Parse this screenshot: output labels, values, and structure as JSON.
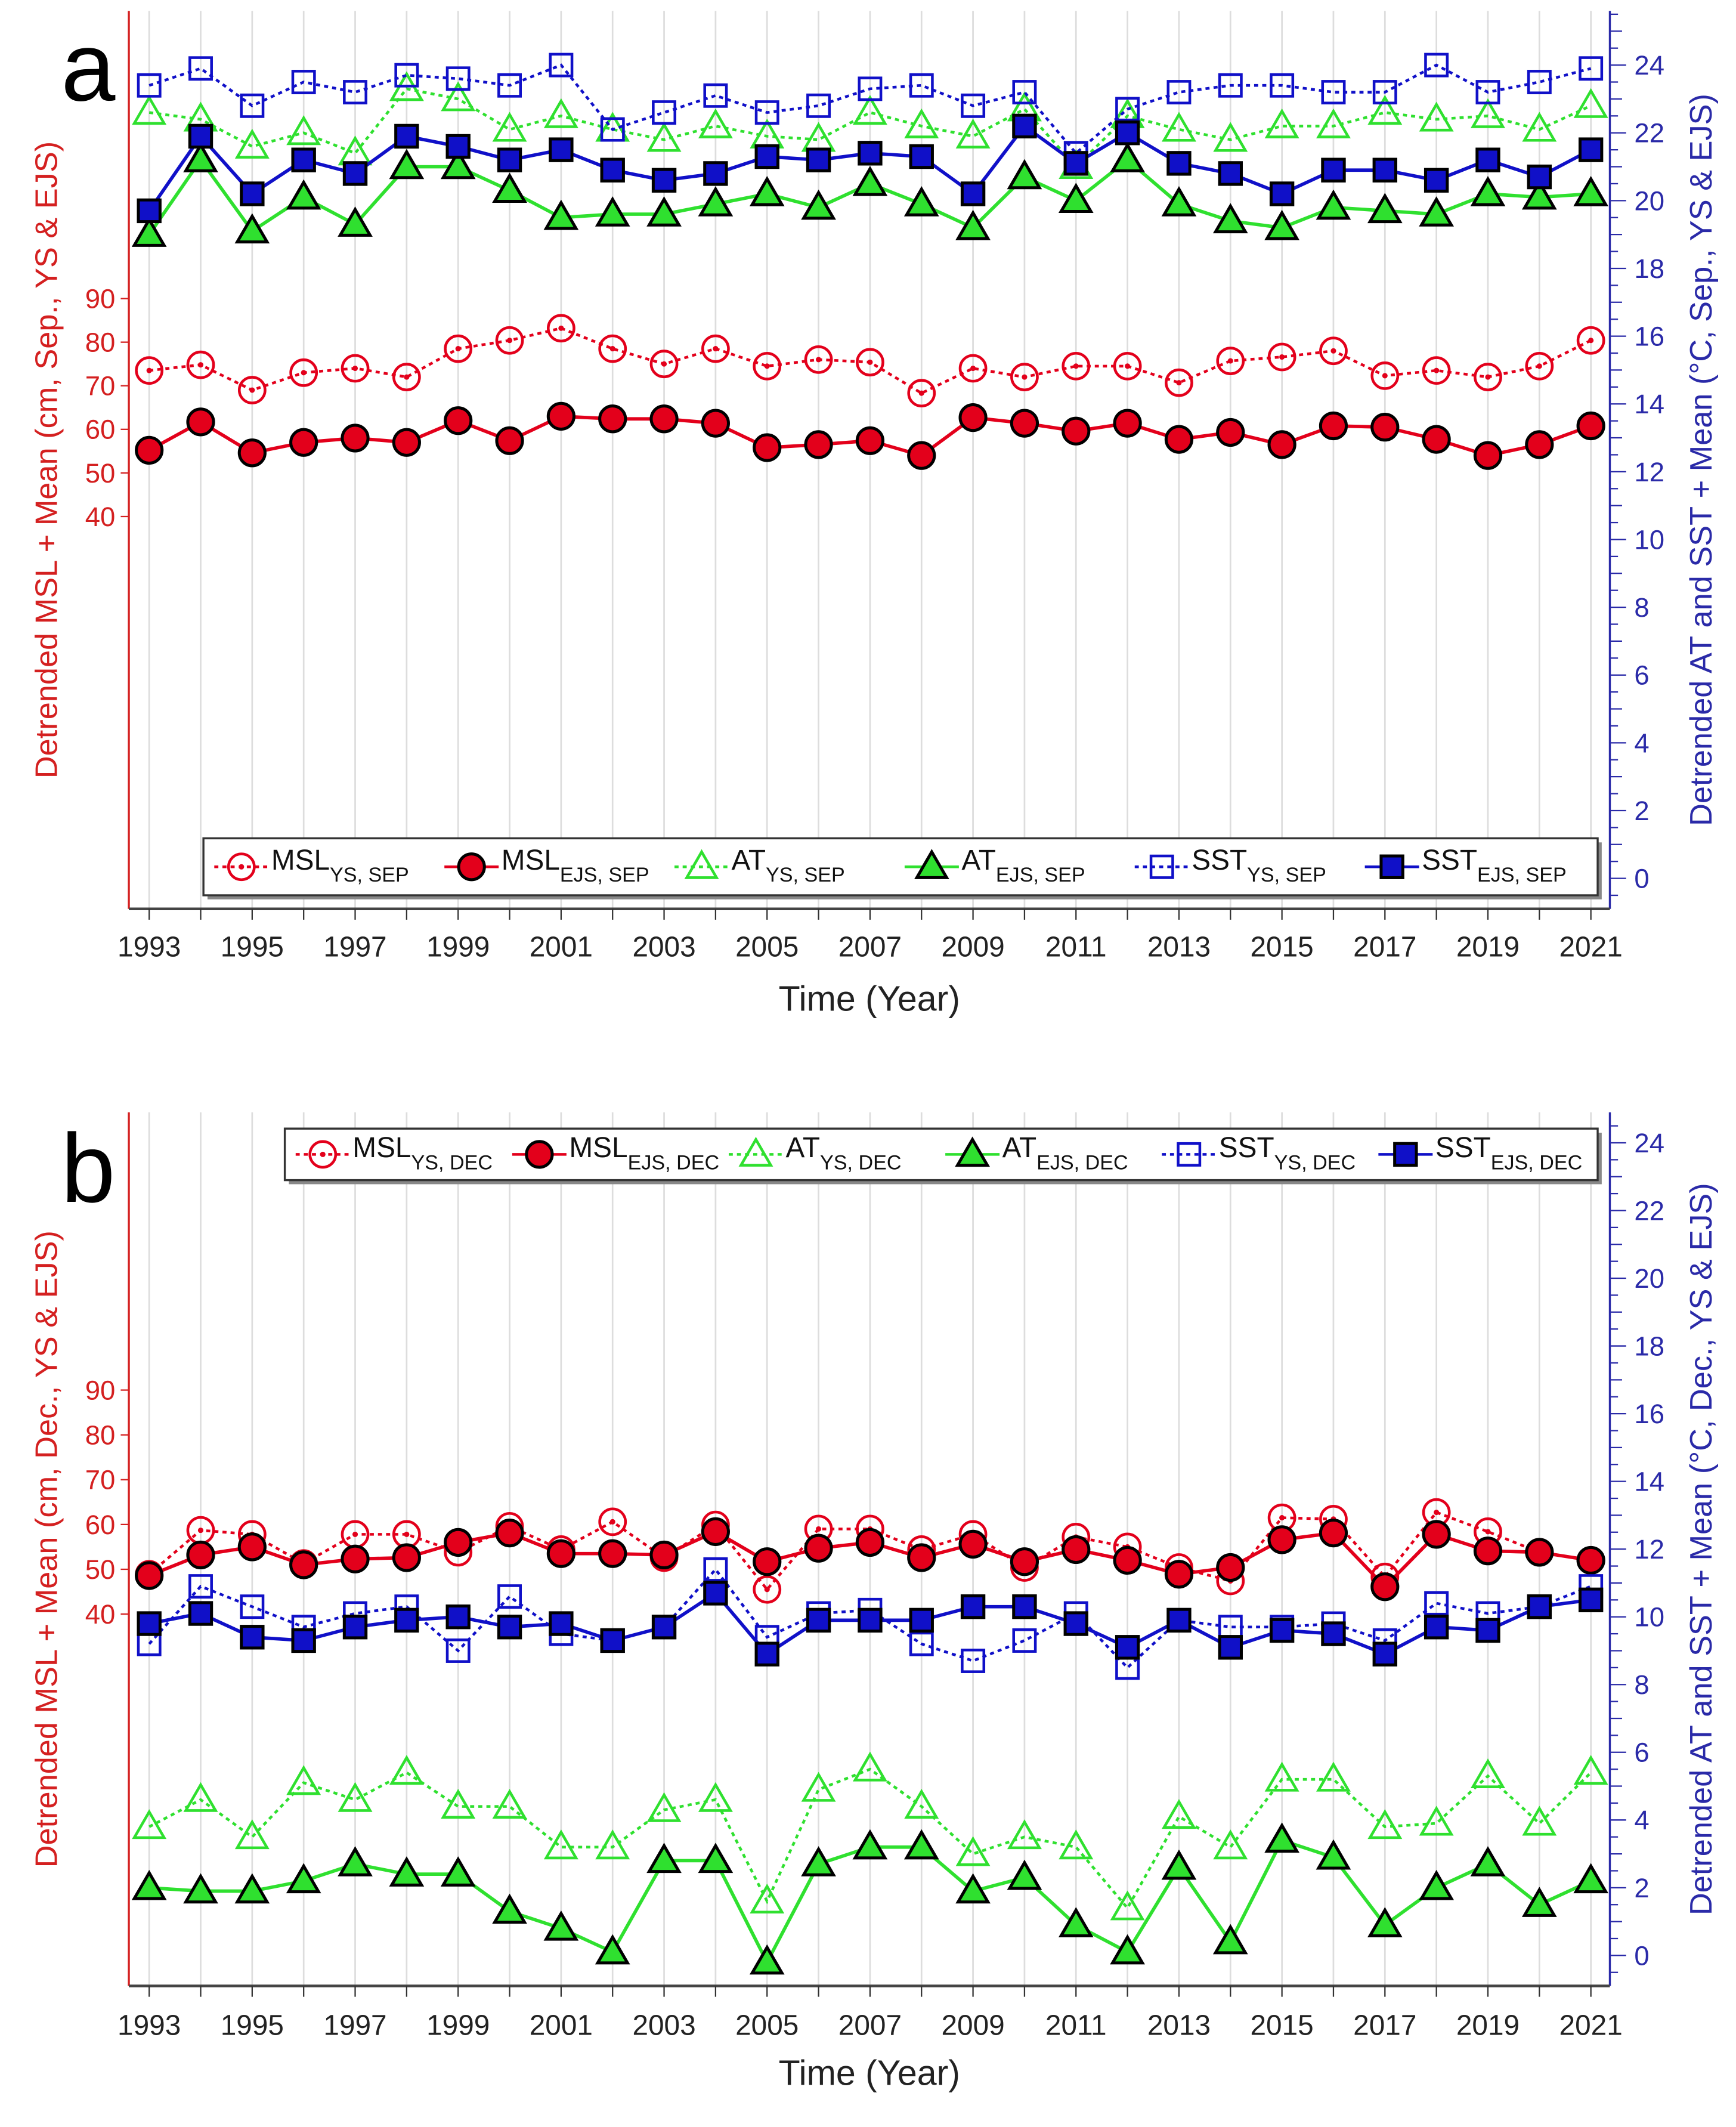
{
  "chart_data": [
    {
      "type": "line",
      "panel_label": "a",
      "xlabel": "Time (Year)",
      "ylabel_left": "Detrended MSL + Mean  (cm, Sep., YS & EJS)",
      "ylabel_right": "Detrended AT and SST + Mean (°C, Sep., YS & EJS)",
      "x": [
        1993,
        1994,
        1995,
        1996,
        1997,
        1998,
        1999,
        2000,
        2001,
        2002,
        2003,
        2004,
        2005,
        2006,
        2007,
        2008,
        2009,
        2010,
        2011,
        2012,
        2013,
        2014,
        2015,
        2016,
        2017,
        2018,
        2019,
        2020,
        2021
      ],
      "xticks": [
        1993,
        1995,
        1997,
        1999,
        2001,
        2003,
        2005,
        2007,
        2009,
        2011,
        2013,
        2015,
        2017,
        2019,
        2021
      ],
      "ylim_left": [
        -50,
        156
      ],
      "yticks_left": [
        40,
        50,
        60,
        70,
        80,
        90
      ],
      "ylim_right": [
        -0.9,
        25.6
      ],
      "yticks_right": [
        0,
        2,
        4,
        6,
        8,
        10,
        12,
        14,
        16,
        18,
        20,
        22,
        24
      ],
      "legend_position": "bottom",
      "series": [
        {
          "name": "MSL",
          "sub": "YS, SEP",
          "axis": "left",
          "style": "open-circle-dotted",
          "color": "#e3001b",
          "values": [
            73.5,
            74.8,
            69,
            73,
            74,
            72,
            78.5,
            80.4,
            83.2,
            78.5,
            75,
            78.5,
            74.5,
            76,
            75.4,
            68.3,
            74,
            72,
            74.5,
            74.5,
            70.7,
            75.7,
            76.6,
            78,
            72.3,
            73.5,
            72,
            74.5,
            80.4
          ]
        },
        {
          "name": "MSL",
          "sub": "EJS, SEP",
          "axis": "left",
          "style": "filled-circle-solid",
          "color": "#e3001b",
          "values": [
            55.2,
            61.7,
            54.6,
            57,
            58,
            57,
            62,
            57.4,
            63,
            62.4,
            62.4,
            61.4,
            55.8,
            56.5,
            57.4,
            54,
            62.7,
            61.4,
            59.6,
            61.4,
            57.7,
            59.3,
            56.5,
            60.8,
            60.5,
            57.7,
            54,
            56.5,
            60.8
          ]
        },
        {
          "name": "AT",
          "sub": "YS, SEP",
          "axis": "right",
          "style": "open-triangle-dotted",
          "color": "#2fe02f",
          "values": [
            22.6,
            22.4,
            21.6,
            22.0,
            21.4,
            23.3,
            23.0,
            22.1,
            22.5,
            22.1,
            21.8,
            22.2,
            21.9,
            21.8,
            22.6,
            22.2,
            21.9,
            22.7,
            21.0,
            22.5,
            22.1,
            21.8,
            22.2,
            22.2,
            22.6,
            22.4,
            22.5,
            22.1,
            22.8
          ]
        },
        {
          "name": "AT",
          "sub": "EJS, SEP",
          "axis": "right",
          "style": "filled-triangle-solid",
          "color": "#2fe02f",
          "values": [
            19.0,
            21.2,
            19.1,
            20.1,
            19.3,
            21.0,
            21.0,
            20.3,
            19.5,
            19.6,
            19.6,
            19.9,
            20.2,
            19.8,
            20.5,
            19.9,
            19.2,
            20.7,
            20.0,
            21.2,
            19.9,
            19.4,
            19.2,
            19.8,
            19.7,
            19.6,
            20.2,
            20.1,
            20.2
          ]
        },
        {
          "name": "SST",
          "sub": "YS, SEP",
          "axis": "right",
          "style": "open-square-dotted",
          "color": "#1010c8",
          "values": [
            23.4,
            23.9,
            22.8,
            23.5,
            23.2,
            23.7,
            23.6,
            23.4,
            24.0,
            22.1,
            22.6,
            23.1,
            22.6,
            22.8,
            23.3,
            23.4,
            22.8,
            23.2,
            21.4,
            22.7,
            23.2,
            23.4,
            23.4,
            23.2,
            23.2,
            24.0,
            23.2,
            23.5,
            23.9
          ]
        },
        {
          "name": "SST",
          "sub": "EJS, SEP",
          "axis": "right",
          "style": "filled-square-solid",
          "color": "#1010c8",
          "values": [
            19.7,
            21.9,
            20.2,
            21.2,
            20.8,
            21.9,
            21.6,
            21.2,
            21.5,
            20.9,
            20.6,
            20.8,
            21.3,
            21.2,
            21.4,
            21.3,
            20.2,
            22.2,
            21.1,
            22.0,
            21.1,
            20.8,
            20.2,
            20.9,
            20.9,
            20.6,
            21.2,
            20.7,
            21.5
          ]
        }
      ]
    },
    {
      "type": "line",
      "panel_label": "b",
      "xlabel": "Time (Year)",
      "ylabel_left": "Detrended MSL + Mean (cm, Dec., YS & EJS)",
      "ylabel_right": "Detrended AT and SST + Mean (°C, Dec., YS & EJS)",
      "x": [
        1993,
        1994,
        1995,
        1996,
        1997,
        1998,
        1999,
        2000,
        2001,
        2002,
        2003,
        2004,
        2005,
        2006,
        2007,
        2008,
        2009,
        2010,
        2011,
        2012,
        2013,
        2014,
        2015,
        2016,
        2017,
        2018,
        2019,
        2020,
        2021
      ],
      "xticks": [
        1993,
        1995,
        1997,
        1999,
        2001,
        2003,
        2005,
        2007,
        2009,
        2011,
        2013,
        2015,
        2017,
        2019,
        2021
      ],
      "ylim_left": [
        -43,
        152
      ],
      "yticks_left": [
        40,
        50,
        60,
        70,
        80,
        90
      ],
      "ylim_right": [
        -0.9,
        24.9
      ],
      "yticks_right": [
        0,
        2,
        4,
        6,
        8,
        10,
        12,
        14,
        16,
        18,
        20,
        22,
        24
      ],
      "legend_position": "top-right",
      "series": [
        {
          "name": "MSL",
          "sub": "YS, DEC",
          "axis": "left",
          "style": "open-circle-dotted",
          "color": "#e3001b",
          "values": [
            48.9,
            58.7,
            57.8,
            51.3,
            57.8,
            57.8,
            53.8,
            59.6,
            54.4,
            60.6,
            52.6,
            59.9,
            45.5,
            59.0,
            59.0,
            54.4,
            57.8,
            50.4,
            57.2,
            55,
            50.4,
            47.4,
            61.5,
            61.2,
            48.3,
            62.7,
            58.4,
            53.8,
            52
          ]
        },
        {
          "name": "MSL",
          "sub": "EJS, DEC",
          "axis": "left",
          "style": "filled-circle-solid",
          "color": "#e3001b",
          "values": [
            48.6,
            53.2,
            55,
            51,
            52.3,
            52.6,
            56,
            58.1,
            53.5,
            53.5,
            53.2,
            58.4,
            51.7,
            54.7,
            56,
            52.6,
            55.6,
            51.7,
            54.4,
            52,
            48.9,
            50.4,
            56.6,
            58.1,
            46.1,
            57.8,
            54.1,
            53.8,
            52
          ]
        },
        {
          "name": "AT",
          "sub": "YS, DEC",
          "axis": "right",
          "style": "open-triangle-dotted",
          "color": "#2fe02f",
          "values": [
            3.8,
            4.6,
            3.5,
            5.1,
            4.6,
            5.4,
            4.4,
            4.4,
            3.2,
            3.2,
            4.3,
            4.6,
            1.6,
            4.9,
            5.5,
            4.4,
            3.0,
            3.5,
            3.2,
            1.4,
            4.1,
            3.2,
            5.2,
            5.2,
            3.8,
            3.9,
            5.3,
            3.9,
            5.4
          ]
        },
        {
          "name": "AT",
          "sub": "EJS, DEC",
          "axis": "right",
          "style": "filled-triangle-solid",
          "color": "#2fe02f",
          "values": [
            2.0,
            1.9,
            1.9,
            2.2,
            2.7,
            2.4,
            2.4,
            1.3,
            0.8,
            0.1,
            2.8,
            2.8,
            -0.2,
            2.7,
            3.2,
            3.2,
            1.9,
            2.3,
            0.9,
            0.1,
            2.6,
            0.4,
            3.4,
            2.9,
            0.9,
            2.0,
            2.7,
            1.5,
            2.2
          ]
        },
        {
          "name": "SST",
          "sub": "YS, DEC",
          "axis": "right",
          "style": "open-square-dotted",
          "color": "#1010c8",
          "values": [
            9.2,
            10.9,
            10.3,
            9.7,
            10.1,
            10.3,
            9.0,
            10.6,
            9.5,
            9.3,
            9.7,
            11.4,
            9.4,
            10.1,
            10.2,
            9.2,
            8.7,
            9.3,
            10.1,
            8.5,
            9.9,
            9.7,
            9.7,
            9.8,
            9.3,
            10.4,
            10.1,
            10.3,
            10.9
          ]
        },
        {
          "name": "SST",
          "sub": "EJS, DEC",
          "axis": "right",
          "style": "filled-square-solid",
          "color": "#1010c8",
          "values": [
            9.8,
            10.1,
            9.4,
            9.3,
            9.7,
            9.9,
            10.0,
            9.7,
            9.8,
            9.3,
            9.7,
            10.7,
            8.9,
            9.9,
            9.9,
            9.9,
            10.3,
            10.3,
            9.8,
            9.1,
            9.9,
            9.1,
            9.6,
            9.5,
            8.9,
            9.7,
            9.6,
            10.3,
            10.5
          ]
        }
      ]
    }
  ],
  "colors": {
    "left_axis": "#d42020",
    "right_axis": "#2a2aa8",
    "grid": "#dddddd"
  }
}
